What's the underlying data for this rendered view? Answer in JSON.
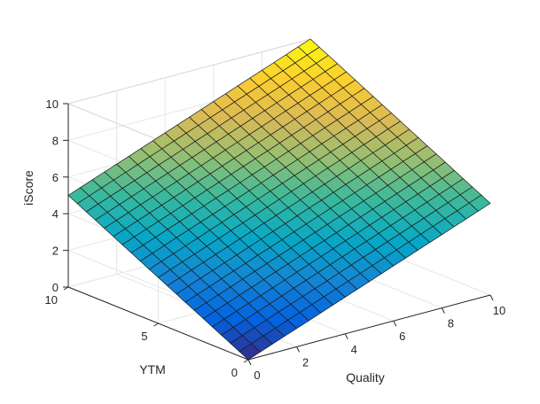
{
  "chart_data": {
    "type": "surface",
    "title": "",
    "xlabel": "Quality",
    "ylabel": "YTM",
    "zlabel": "iScore",
    "xlim": [
      0,
      10
    ],
    "ylim": [
      0,
      10
    ],
    "zlim": [
      0,
      10
    ],
    "xticks": [
      "0",
      "2",
      "4",
      "6",
      "8",
      "10"
    ],
    "yticks": [
      "0",
      "5",
      "10"
    ],
    "zticks": [
      "0",
      "2",
      "4",
      "6",
      "8",
      "10"
    ],
    "colormap": "parula",
    "grid": true,
    "surface": {
      "x_range": [
        0,
        10
      ],
      "y_range": [
        0,
        10
      ],
      "steps": 20,
      "z_corners": {
        "x0_y0": 0.0,
        "x10_y0": 5.0,
        "x0_y10": 5.0,
        "x10_y10": 10.0
      }
    }
  }
}
